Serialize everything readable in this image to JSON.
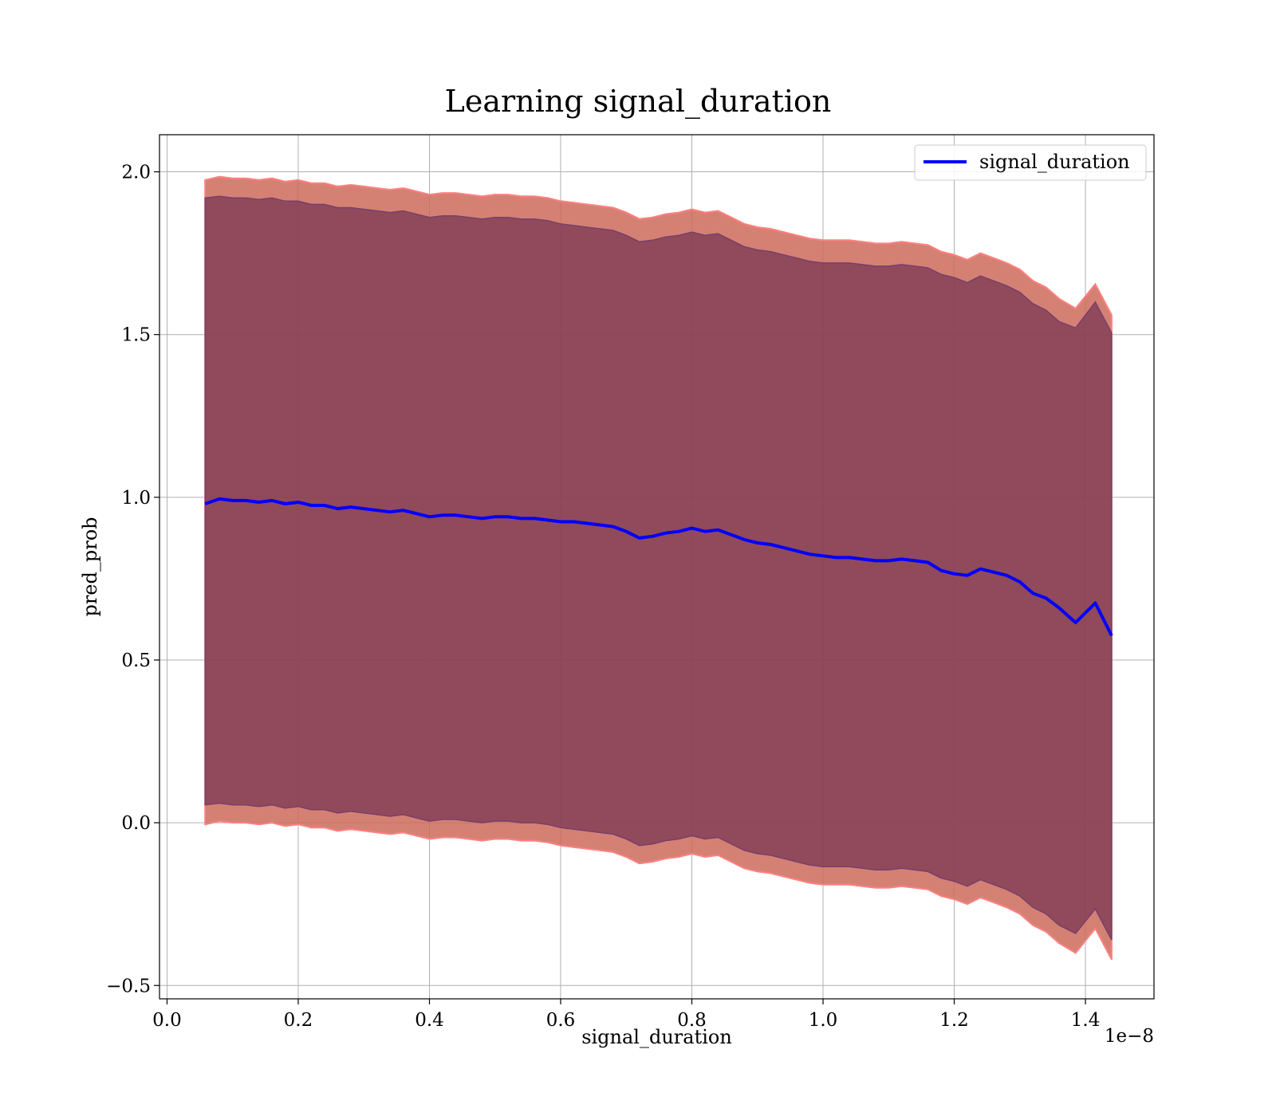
{
  "chart_data": {
    "type": "line",
    "title": "Learning signal_duration",
    "xlabel": "signal_duration",
    "ylabel": "pred_prob",
    "x_offset_label": "1e−8",
    "x_scale_exponent": -8,
    "xlim": [
      -0.0115,
      1.5045
    ],
    "ylim": [
      -0.541,
      2.114
    ],
    "xticks": [
      0.0,
      0.2,
      0.4,
      0.6,
      0.8,
      1.0,
      1.2,
      1.4
    ],
    "xtick_labels": [
      "0.0",
      "0.2",
      "0.4",
      "0.6",
      "0.8",
      "1.0",
      "1.2",
      "1.4"
    ],
    "yticks": [
      -0.5,
      0.0,
      0.5,
      1.0,
      1.5,
      2.0
    ],
    "ytick_labels": [
      "−0.5",
      "0.0",
      "0.5",
      "1.0",
      "1.5",
      "2.0"
    ],
    "grid": true,
    "legend": {
      "position": "upper right",
      "entries": [
        "signal_duration"
      ]
    },
    "colors": {
      "line": "#0000ff",
      "outer_band": "#cd6b5c",
      "outer_band_edge": "#ff8080",
      "inner_band": "#7e3c55",
      "inner_band_edge": "#7a3f6a"
    },
    "series": [
      {
        "name": "signal_duration",
        "x": [
          0.058,
          0.08,
          0.1,
          0.12,
          0.14,
          0.16,
          0.18,
          0.2,
          0.22,
          0.24,
          0.26,
          0.28,
          0.3,
          0.32,
          0.34,
          0.36,
          0.38,
          0.4,
          0.42,
          0.44,
          0.46,
          0.48,
          0.5,
          0.52,
          0.54,
          0.56,
          0.58,
          0.6,
          0.62,
          0.64,
          0.66,
          0.68,
          0.7,
          0.72,
          0.74,
          0.76,
          0.78,
          0.8,
          0.82,
          0.84,
          0.86,
          0.88,
          0.9,
          0.92,
          0.94,
          0.96,
          0.98,
          1.0,
          1.02,
          1.04,
          1.06,
          1.08,
          1.1,
          1.12,
          1.14,
          1.16,
          1.18,
          1.2,
          1.22,
          1.24,
          1.26,
          1.28,
          1.3,
          1.32,
          1.34,
          1.36,
          1.385,
          1.415,
          1.44
        ],
        "y": [
          0.98,
          0.995,
          0.99,
          0.99,
          0.985,
          0.99,
          0.98,
          0.985,
          0.975,
          0.975,
          0.965,
          0.97,
          0.965,
          0.96,
          0.955,
          0.96,
          0.95,
          0.94,
          0.945,
          0.945,
          0.94,
          0.935,
          0.94,
          0.94,
          0.935,
          0.935,
          0.93,
          0.925,
          0.925,
          0.92,
          0.915,
          0.91,
          0.895,
          0.875,
          0.88,
          0.89,
          0.895,
          0.905,
          0.895,
          0.9,
          0.885,
          0.87,
          0.86,
          0.855,
          0.845,
          0.835,
          0.825,
          0.82,
          0.815,
          0.815,
          0.81,
          0.805,
          0.805,
          0.81,
          0.805,
          0.8,
          0.775,
          0.765,
          0.76,
          0.78,
          0.77,
          0.76,
          0.74,
          0.705,
          0.69,
          0.66,
          0.615,
          0.675,
          0.575
        ],
        "band_outer_upper": [
          1.975,
          1.985,
          1.98,
          1.98,
          1.975,
          1.98,
          1.97,
          1.975,
          1.965,
          1.965,
          1.955,
          1.96,
          1.955,
          1.95,
          1.945,
          1.95,
          1.94,
          1.93,
          1.935,
          1.935,
          1.93,
          1.925,
          1.93,
          1.93,
          1.925,
          1.925,
          1.92,
          1.91,
          1.905,
          1.9,
          1.895,
          1.89,
          1.875,
          1.855,
          1.86,
          1.87,
          1.875,
          1.885,
          1.875,
          1.88,
          1.86,
          1.84,
          1.83,
          1.825,
          1.815,
          1.805,
          1.795,
          1.79,
          1.79,
          1.79,
          1.785,
          1.78,
          1.78,
          1.785,
          1.78,
          1.775,
          1.755,
          1.745,
          1.73,
          1.75,
          1.735,
          1.72,
          1.7,
          1.665,
          1.645,
          1.61,
          1.58,
          1.655,
          1.56
        ],
        "band_outer_lower": [
          -0.005,
          0.005,
          0.0,
          0.0,
          -0.005,
          0.0,
          -0.01,
          -0.005,
          -0.015,
          -0.015,
          -0.025,
          -0.02,
          -0.025,
          -0.03,
          -0.035,
          -0.03,
          -0.04,
          -0.05,
          -0.045,
          -0.045,
          -0.05,
          -0.055,
          -0.05,
          -0.05,
          -0.055,
          -0.055,
          -0.06,
          -0.07,
          -0.075,
          -0.08,
          -0.085,
          -0.09,
          -0.105,
          -0.125,
          -0.12,
          -0.11,
          -0.105,
          -0.095,
          -0.105,
          -0.1,
          -0.12,
          -0.14,
          -0.15,
          -0.155,
          -0.165,
          -0.175,
          -0.185,
          -0.19,
          -0.19,
          -0.19,
          -0.195,
          -0.2,
          -0.2,
          -0.195,
          -0.2,
          -0.205,
          -0.225,
          -0.235,
          -0.25,
          -0.23,
          -0.245,
          -0.26,
          -0.28,
          -0.315,
          -0.335,
          -0.37,
          -0.4,
          -0.325,
          -0.42
        ],
        "band_inner_upper": [
          1.92,
          1.925,
          1.92,
          1.92,
          1.915,
          1.92,
          1.91,
          1.91,
          1.9,
          1.9,
          1.89,
          1.89,
          1.885,
          1.88,
          1.875,
          1.88,
          1.87,
          1.86,
          1.865,
          1.865,
          1.86,
          1.855,
          1.86,
          1.86,
          1.855,
          1.855,
          1.85,
          1.84,
          1.835,
          1.83,
          1.825,
          1.82,
          1.805,
          1.785,
          1.79,
          1.8,
          1.805,
          1.815,
          1.805,
          1.81,
          1.79,
          1.77,
          1.76,
          1.755,
          1.745,
          1.735,
          1.725,
          1.72,
          1.72,
          1.72,
          1.715,
          1.71,
          1.71,
          1.715,
          1.71,
          1.705,
          1.685,
          1.675,
          1.66,
          1.68,
          1.665,
          1.65,
          1.63,
          1.595,
          1.575,
          1.54,
          1.52,
          1.6,
          1.505
        ],
        "band_inner_lower": [
          0.055,
          0.06,
          0.055,
          0.055,
          0.05,
          0.055,
          0.045,
          0.05,
          0.04,
          0.04,
          0.03,
          0.035,
          0.03,
          0.025,
          0.02,
          0.025,
          0.015,
          0.005,
          0.01,
          0.01,
          0.005,
          0.0,
          0.005,
          0.005,
          0.0,
          0.0,
          -0.005,
          -0.015,
          -0.02,
          -0.025,
          -0.03,
          -0.035,
          -0.05,
          -0.07,
          -0.065,
          -0.055,
          -0.05,
          -0.04,
          -0.05,
          -0.045,
          -0.065,
          -0.085,
          -0.095,
          -0.1,
          -0.11,
          -0.12,
          -0.13,
          -0.135,
          -0.135,
          -0.135,
          -0.14,
          -0.145,
          -0.145,
          -0.14,
          -0.145,
          -0.15,
          -0.17,
          -0.18,
          -0.195,
          -0.175,
          -0.19,
          -0.205,
          -0.225,
          -0.26,
          -0.28,
          -0.315,
          -0.34,
          -0.265,
          -0.36
        ]
      }
    ]
  }
}
